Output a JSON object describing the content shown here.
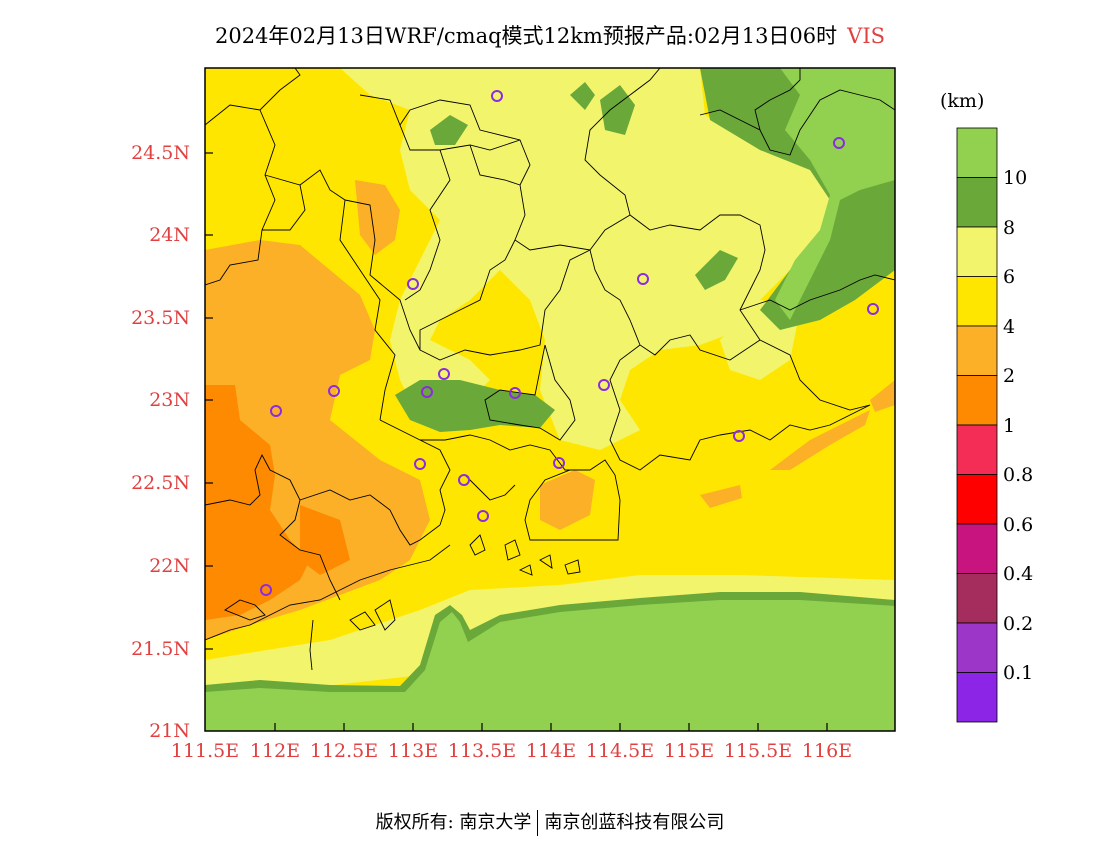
{
  "title": {
    "text": "2024年02月13日WRF/cmaq模式12km预报产品:02月13日06时",
    "variable": "VIS"
  },
  "map": {
    "lon_labels": [
      "111.5E",
      "112E",
      "112.5E",
      "113E",
      "113.5E",
      "114E",
      "114.5E",
      "115E",
      "115.5E",
      "116E"
    ],
    "lat_labels": [
      "24.5N",
      "24N",
      "23.5N",
      "23N",
      "22.5N",
      "22N",
      "21.5N",
      "21N"
    ],
    "station_count": 17
  },
  "colorbar": {
    "unit": "(km)",
    "levels": [
      "10",
      "8",
      "6",
      "4",
      "2",
      "1",
      "0.8",
      "0.6",
      "0.4",
      "0.2",
      "0.1"
    ],
    "colors": [
      "#92d050",
      "#6aa83a",
      "#f2f56c",
      "#ffe600",
      "#fbb028",
      "#fd8a00",
      "#f42d57",
      "#ff0000",
      "#c8147e",
      "#a52d5e",
      "#9c36c8",
      "#8c25e6"
    ]
  },
  "footer": {
    "copyright": "版权所有: 南京大学",
    "company": "南京创蓝科技有限公司"
  }
}
